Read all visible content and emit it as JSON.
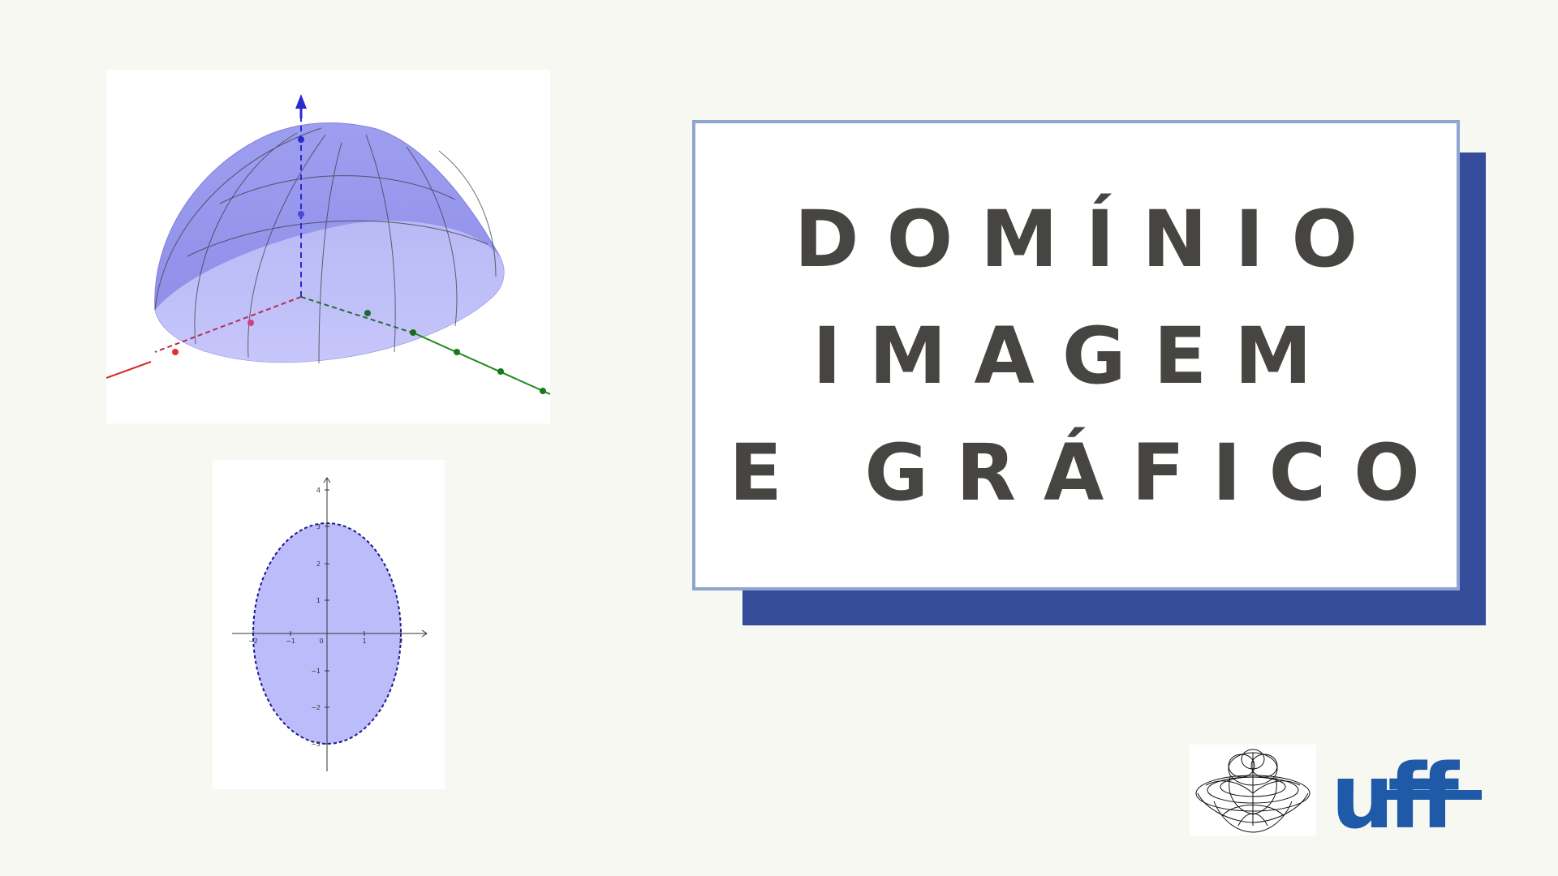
{
  "title": {
    "line1": "DOMÍNIO",
    "line2": "IMAGEM",
    "line3": "E GRÁFICO"
  },
  "plot_2d": {
    "x_ticks": [
      "−2",
      "−1",
      "0",
      "1",
      "2"
    ],
    "y_ticks": [
      "4",
      "3",
      "2",
      "1",
      "−1",
      "−2",
      "−3"
    ]
  },
  "logos": {
    "uff": "uff"
  },
  "colors": {
    "background": "#f8f8f2",
    "accent_shadow": "#344c9a",
    "box_border": "#8fa4d2",
    "title_text": "#464542",
    "ellipse_fill": "#bcbcfb",
    "ellipse_stroke": "#1a1a8c",
    "uff_blue": "#1e5aa8"
  }
}
